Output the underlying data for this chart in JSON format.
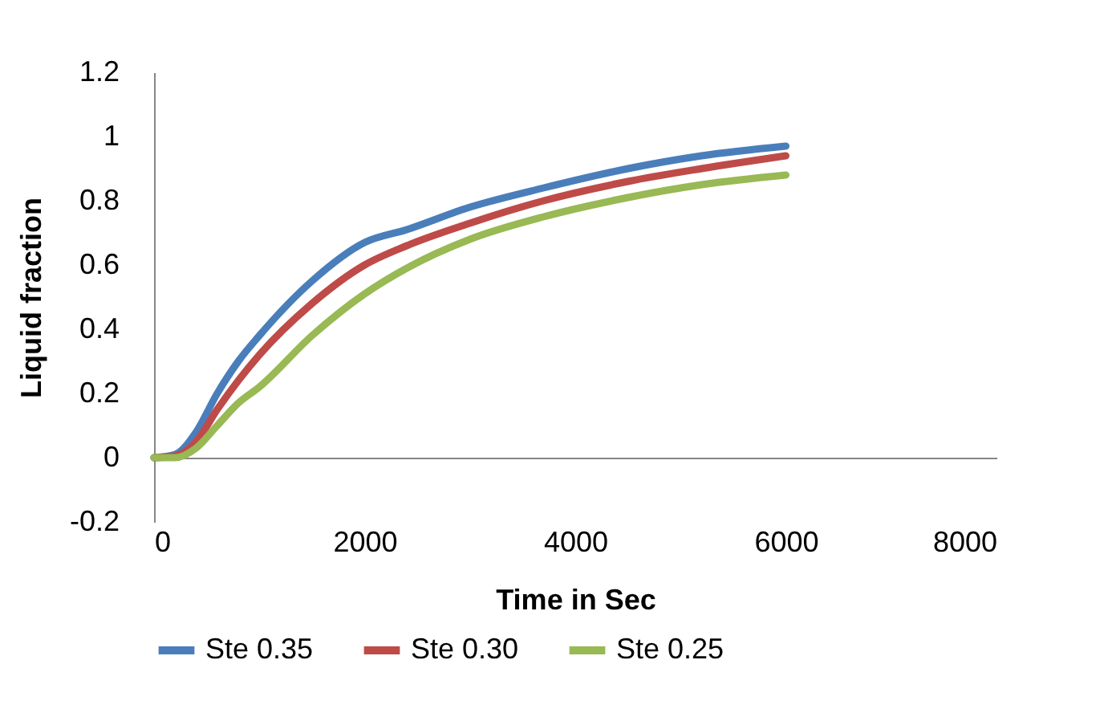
{
  "chart_data": {
    "type": "line",
    "xlabel": "Time in Sec",
    "ylabel": "Liquid fraction",
    "x": [
      0,
      200,
      400,
      600,
      800,
      1000,
      1500,
      2000,
      2400,
      3000,
      3700,
      4500,
      5200,
      6000
    ],
    "series": [
      {
        "name": "Ste 0.35",
        "color": "#4a7ebb",
        "values": [
          0,
          0.01,
          0.08,
          0.2,
          0.3,
          0.38,
          0.55,
          0.67,
          0.71,
          0.78,
          0.84,
          0.9,
          0.94,
          0.97
        ]
      },
      {
        "name": "Ste 0.30",
        "color": "#be4b48",
        "values": [
          0,
          0.005,
          0.05,
          0.15,
          0.24,
          0.32,
          0.48,
          0.6,
          0.66,
          0.73,
          0.8,
          0.86,
          0.9,
          0.94
        ]
      },
      {
        "name": "Ste 0.25",
        "color": "#98b954",
        "values": [
          0,
          0,
          0.03,
          0.1,
          0.17,
          0.22,
          0.38,
          0.51,
          0.59,
          0.68,
          0.75,
          0.81,
          0.85,
          0.88
        ]
      }
    ],
    "xlim": [
      0,
      8000
    ],
    "xticks": [
      0,
      2000,
      4000,
      6000,
      8000
    ],
    "ylim": [
      -0.2,
      1.2
    ],
    "yticks": [
      -0.2,
      0,
      0.2,
      0.4,
      0.6,
      0.8,
      1,
      1.2
    ],
    "grid": false,
    "legend": "bottom",
    "marker": "none",
    "line_style": "solid"
  }
}
